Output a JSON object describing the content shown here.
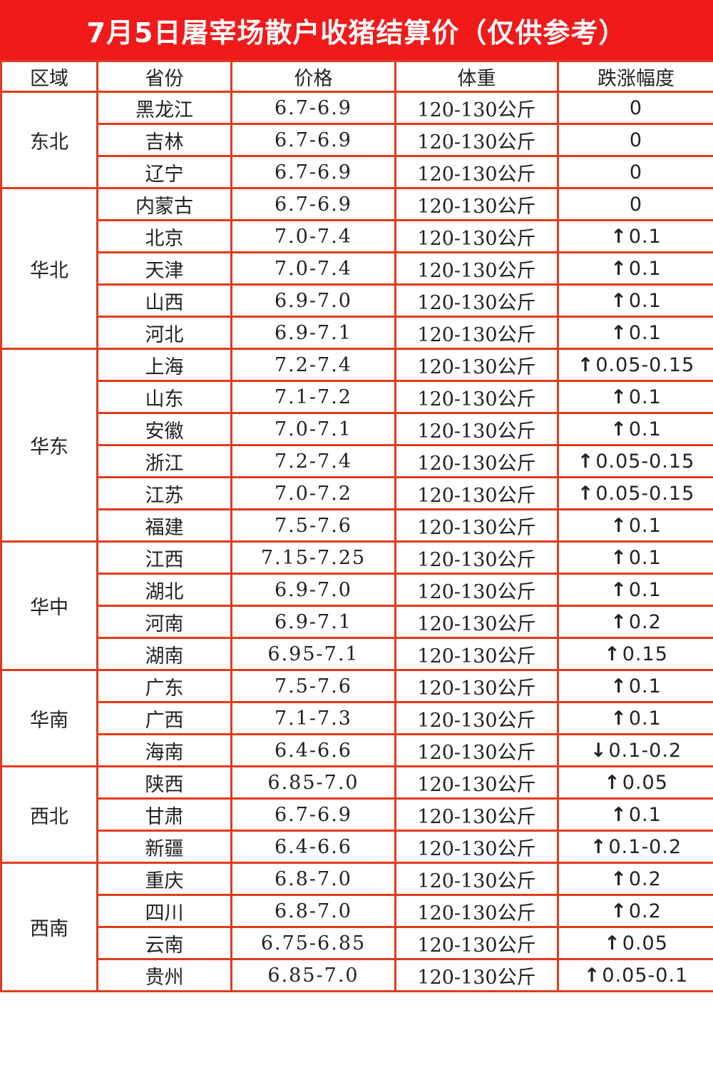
{
  "title": "7月5日屠宰场散户收猪结算价（仅供参考）",
  "columns": [
    "区域",
    "省份",
    "价格",
    "体重",
    "跌涨幅度"
  ],
  "colors": {
    "header_red": "#f11a1a",
    "border": "#e23a1e",
    "up": "#f01414",
    "down": "#12b71a"
  },
  "icons": {
    "up": "arrow-up-icon",
    "down": "arrow-down-icon"
  },
  "regions": [
    {
      "name": "东北",
      "rows": [
        {
          "province": "黑龙江",
          "price": "6.7-6.9",
          "weight": "120-130公斤",
          "change": "0",
          "trend": "flat"
        },
        {
          "province": "吉林",
          "price": "6.7-6.9",
          "weight": "120-130公斤",
          "change": "0",
          "trend": "flat"
        },
        {
          "province": "辽宁",
          "price": "6.7-6.9",
          "weight": "120-130公斤",
          "change": "0",
          "trend": "flat"
        }
      ]
    },
    {
      "name": "华北",
      "rows": [
        {
          "province": "内蒙古",
          "price": "6.7-6.9",
          "weight": "120-130公斤",
          "change": "0",
          "trend": "flat"
        },
        {
          "province": "北京",
          "price": "7.0-7.4",
          "weight": "120-130公斤",
          "change": "0.1",
          "trend": "up"
        },
        {
          "province": "天津",
          "price": "7.0-7.4",
          "weight": "120-130公斤",
          "change": "0.1",
          "trend": "up"
        },
        {
          "province": "山西",
          "price": "6.9-7.0",
          "weight": "120-130公斤",
          "change": "0.1",
          "trend": "up"
        },
        {
          "province": "河北",
          "price": "6.9-7.1",
          "weight": "120-130公斤",
          "change": "0.1",
          "trend": "up"
        }
      ]
    },
    {
      "name": "华东",
      "rows": [
        {
          "province": "上海",
          "price": "7.2-7.4",
          "weight": "120-130公斤",
          "change": "0.05-0.15",
          "trend": "up"
        },
        {
          "province": "山东",
          "price": "7.1-7.2",
          "weight": "120-130公斤",
          "change": "0.1",
          "trend": "up"
        },
        {
          "province": "安徽",
          "price": "7.0-7.1",
          "weight": "120-130公斤",
          "change": "0.1",
          "trend": "up"
        },
        {
          "province": "浙江",
          "price": "7.2-7.4",
          "weight": "120-130公斤",
          "change": "0.05-0.15",
          "trend": "up"
        },
        {
          "province": "江苏",
          "price": "7.0-7.2",
          "weight": "120-130公斤",
          "change": "0.05-0.15",
          "trend": "up"
        },
        {
          "province": "福建",
          "price": "7.5-7.6",
          "weight": "120-130公斤",
          "change": "0.1",
          "trend": "up"
        }
      ]
    },
    {
      "name": "华中",
      "rows": [
        {
          "province": "江西",
          "price": "7.15-7.25",
          "weight": "120-130公斤",
          "change": "0.1",
          "trend": "up"
        },
        {
          "province": "湖北",
          "price": "6.9-7.0",
          "weight": "120-130公斤",
          "change": "0.1",
          "trend": "up"
        },
        {
          "province": "河南",
          "price": "6.9-7.1",
          "weight": "120-130公斤",
          "change": "0.2",
          "trend": "up"
        },
        {
          "province": "湖南",
          "price": "6.95-7.1",
          "weight": "120-130公斤",
          "change": "0.15",
          "trend": "up"
        }
      ]
    },
    {
      "name": "华南",
      "rows": [
        {
          "province": "广东",
          "price": "7.5-7.6",
          "weight": "120-130公斤",
          "change": "0.1",
          "trend": "up"
        },
        {
          "province": "广西",
          "price": "7.1-7.3",
          "weight": "120-130公斤",
          "change": "0.1",
          "trend": "up"
        },
        {
          "province": "海南",
          "price": "6.4-6.6",
          "weight": "120-130公斤",
          "change": "0.1-0.2",
          "trend": "down"
        }
      ]
    },
    {
      "name": "西北",
      "rows": [
        {
          "province": "陕西",
          "price": "6.85-7.0",
          "weight": "120-130公斤",
          "change": "0.05",
          "trend": "up"
        },
        {
          "province": "甘肃",
          "price": "6.7-6.9",
          "weight": "120-130公斤",
          "change": "0.1",
          "trend": "up"
        },
        {
          "province": "新疆",
          "price": "6.4-6.6",
          "weight": "120-130公斤",
          "change": "0.1-0.2",
          "trend": "up"
        }
      ]
    },
    {
      "name": "西南",
      "rows": [
        {
          "province": "重庆",
          "price": "6.8-7.0",
          "weight": "120-130公斤",
          "change": "0.2",
          "trend": "up"
        },
        {
          "province": "四川",
          "price": "6.8-7.0",
          "weight": "120-130公斤",
          "change": "0.2",
          "trend": "up"
        },
        {
          "province": "云南",
          "price": "6.75-6.85",
          "weight": "120-130公斤",
          "change": "0.05",
          "trend": "up"
        },
        {
          "province": "贵州",
          "price": "6.85-7.0",
          "weight": "120-130公斤",
          "change": "0.05-0.1",
          "trend": "up"
        }
      ]
    }
  ]
}
